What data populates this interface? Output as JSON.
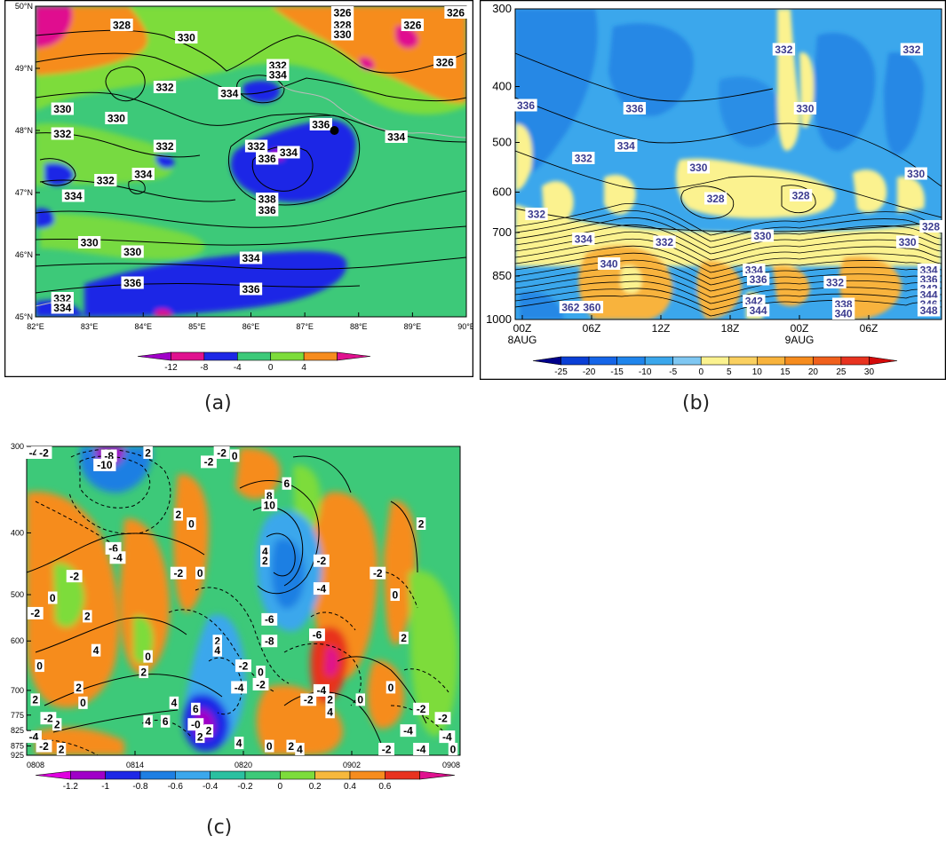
{
  "panels": [
    {
      "caption": "(a)"
    },
    {
      "caption": "(b)"
    },
    {
      "caption": "(c)"
    }
  ],
  "colors": {
    "magenta": "#e0118f",
    "orange": "#f68c1e",
    "lightgreen": "#7ddc3b",
    "green": "#3dc979",
    "blue": "#1e28e6",
    "lightblue": "#3ba7ec",
    "yellow": "#fbf28f",
    "contour": "#000000"
  },
  "chart_data": [
    {
      "type": "heatmap",
      "panel": "a",
      "x_ticks": [
        "82°E",
        "83°E",
        "84°E",
        "85°E",
        "86°E",
        "87°E",
        "88°E",
        "89°E",
        "90°E"
      ],
      "y_ticks": [
        "50°N",
        "49°N",
        "48°N",
        "47°N",
        "46°N",
        "45°N"
      ],
      "xlim": [
        82,
        90
      ],
      "ylim": [
        45,
        50
      ],
      "colorbar": {
        "ticks": [
          "-12",
          "-8",
          "-4",
          "0",
          "4"
        ],
        "colors": [
          "#a000c8",
          "#e0118f",
          "#1e28e6",
          "#3dc979",
          "#7ddc3b",
          "#f68c1e",
          "#e0118f"
        ]
      },
      "contour_labels": [
        {
          "text": "328",
          "lon": 83.6,
          "lat": 49.7
        },
        {
          "text": "330",
          "lon": 84.8,
          "lat": 49.5
        },
        {
          "text": "326",
          "lon": 87.7,
          "lat": 49.9
        },
        {
          "text": "328",
          "lon": 87.7,
          "lat": 49.7
        },
        {
          "text": "330",
          "lon": 87.7,
          "lat": 49.55
        },
        {
          "text": "326",
          "lon": 89.0,
          "lat": 49.7
        },
        {
          "text": "326",
          "lon": 89.6,
          "lat": 49.1
        },
        {
          "text": "326",
          "lon": 90.0,
          "lat": 50.0
        },
        {
          "text": "332",
          "lon": 86.5,
          "lat": 49.05
        },
        {
          "text": "334",
          "lon": 86.5,
          "lat": 48.9
        },
        {
          "text": "332",
          "lon": 84.4,
          "lat": 48.7
        },
        {
          "text": "334",
          "lon": 85.6,
          "lat": 48.6
        },
        {
          "text": "330",
          "lon": 82.5,
          "lat": 48.35
        },
        {
          "text": "330",
          "lon": 83.5,
          "lat": 48.2
        },
        {
          "text": "332",
          "lon": 82.5,
          "lat": 47.95
        },
        {
          "text": "336",
          "lon": 87.3,
          "lat": 48.1
        },
        {
          "text": "334",
          "lon": 88.7,
          "lat": 47.9
        },
        {
          "text": "332",
          "lon": 84.4,
          "lat": 47.75
        },
        {
          "text": "332",
          "lon": 86.1,
          "lat": 47.75
        },
        {
          "text": "334",
          "lon": 86.7,
          "lat": 47.65
        },
        {
          "text": "336",
          "lon": 86.3,
          "lat": 47.55
        },
        {
          "text": "332",
          "lon": 83.3,
          "lat": 47.2
        },
        {
          "text": "334",
          "lon": 84.0,
          "lat": 47.3
        },
        {
          "text": "334",
          "lon": 82.7,
          "lat": 46.95
        },
        {
          "text": "338",
          "lon": 86.3,
          "lat": 46.9
        },
        {
          "text": "336",
          "lon": 86.3,
          "lat": 46.72
        },
        {
          "text": "330",
          "lon": 83.0,
          "lat": 46.2
        },
        {
          "text": "330",
          "lon": 83.8,
          "lat": 46.05
        },
        {
          "text": "334",
          "lon": 86.0,
          "lat": 45.95
        },
        {
          "text": "336",
          "lon": 83.8,
          "lat": 45.55
        },
        {
          "text": "336",
          "lon": 86.0,
          "lat": 45.45
        },
        {
          "text": "332",
          "lon": 82.5,
          "lat": 45.3
        },
        {
          "text": "334",
          "lon": 82.5,
          "lat": 45.15
        }
      ],
      "marker": {
        "lon": 87.55,
        "lat": 48.0
      }
    },
    {
      "type": "heatmap",
      "panel": "b",
      "x_ticks": [
        "00Z\n8AUG",
        "06Z",
        "12Z",
        "18Z",
        "00Z\n9AUG",
        "06Z"
      ],
      "y_ticks": [
        "300",
        "400",
        "500",
        "600",
        "700",
        "850",
        "1000"
      ],
      "colorbar": {
        "ticks": [
          "-25",
          "-20",
          "-15",
          "-10",
          "-5",
          "0",
          "5",
          "10",
          "15",
          "20",
          "25",
          "30"
        ]
      },
      "contour_labels": [
        {
          "text": "332",
          "t": 0.63,
          "p": 0.13
        },
        {
          "text": "332",
          "t": 0.93,
          "p": 0.13
        },
        {
          "text": "336",
          "t": 0.01,
          "p": 0.31
        },
        {
          "text": "336",
          "t": 0.28,
          "p": 0.32
        },
        {
          "text": "330",
          "t": 0.68,
          "p": 0.32
        },
        {
          "text": "334",
          "t": 0.26,
          "p": 0.44
        },
        {
          "text": "332",
          "t": 0.16,
          "p": 0.48
        },
        {
          "text": "330",
          "t": 0.43,
          "p": 0.51
        },
        {
          "text": "330",
          "t": 0.94,
          "p": 0.53
        },
        {
          "text": "328",
          "t": 0.47,
          "p": 0.61
        },
        {
          "text": "328",
          "t": 0.67,
          "p": 0.6
        },
        {
          "text": "332",
          "t": 0.05,
          "p": 0.66
        },
        {
          "text": "328",
          "t": 0.98,
          "p": 0.7
        },
        {
          "text": "334",
          "t": 0.16,
          "p": 0.74
        },
        {
          "text": "332",
          "t": 0.35,
          "p": 0.75
        },
        {
          "text": "330",
          "t": 0.58,
          "p": 0.73
        },
        {
          "text": "330",
          "t": 0.92,
          "p": 0.75
        },
        {
          "text": "340",
          "t": 0.22,
          "p": 0.82
        },
        {
          "text": "334",
          "t": 0.56,
          "p": 0.84
        },
        {
          "text": "336",
          "t": 0.57,
          "p": 0.87
        },
        {
          "text": "332",
          "t": 0.75,
          "p": 0.88
        },
        {
          "text": "334",
          "t": 0.97,
          "p": 0.84
        },
        {
          "text": "336",
          "t": 0.97,
          "p": 0.87
        },
        {
          "text": "342",
          "t": 0.97,
          "p": 0.9
        },
        {
          "text": "344",
          "t": 0.97,
          "p": 0.92
        },
        {
          "text": "346",
          "t": 0.97,
          "p": 0.95
        },
        {
          "text": "348",
          "t": 0.97,
          "p": 0.97
        },
        {
          "text": "342",
          "t": 0.56,
          "p": 0.94
        },
        {
          "text": "344",
          "t": 0.57,
          "p": 0.97
        },
        {
          "text": "338",
          "t": 0.77,
          "p": 0.95
        },
        {
          "text": "340",
          "t": 0.77,
          "p": 0.98
        },
        {
          "text": "362",
          "t": 0.13,
          "p": 0.96
        },
        {
          "text": "360",
          "t": 0.18,
          "p": 0.96
        }
      ]
    },
    {
      "type": "heatmap",
      "panel": "c",
      "x_ticks": [
        "0808",
        "0814",
        "0820",
        "0902",
        "0908"
      ],
      "y_ticks": [
        "300",
        "400",
        "500",
        "600",
        "700",
        "775",
        "825",
        "875",
        "925"
      ],
      "colorbar": {
        "ticks": [
          "-1.2",
          "-1",
          "-0.8",
          "-0.6",
          "-0.4",
          "-0.2",
          "0",
          "0.2",
          "0.4",
          "0.6"
        ]
      },
      "contour_labels": [
        {
          "text": "-4",
          "t": 0.01,
          "p": 0.02
        },
        {
          "text": "-2",
          "t": 0.04,
          "p": 0.01
        },
        {
          "text": "-8",
          "t": 0.19,
          "p": 0.03
        },
        {
          "text": "-10",
          "t": 0.18,
          "p": 0.06
        },
        {
          "text": "2",
          "t": 0.28,
          "p": 0.02
        },
        {
          "text": "-2",
          "t": 0.45,
          "p": 0.01
        },
        {
          "text": "0",
          "t": 0.48,
          "p": 0.03
        },
        {
          "text": "-2",
          "t": 0.42,
          "p": 0.05
        },
        {
          "text": "6",
          "t": 0.6,
          "p": 0.12
        },
        {
          "text": "8",
          "t": 0.56,
          "p": 0.16
        },
        {
          "text": "10",
          "t": 0.56,
          "p": 0.19
        },
        {
          "text": "2",
          "t": 0.35,
          "p": 0.22
        },
        {
          "text": "0",
          "t": 0.38,
          "p": 0.25
        },
        {
          "text": "2",
          "t": 0.91,
          "p": 0.25
        },
        {
          "text": "-6",
          "t": 0.2,
          "p": 0.33
        },
        {
          "text": "-4",
          "t": 0.21,
          "p": 0.36
        },
        {
          "text": "4",
          "t": 0.55,
          "p": 0.34
        },
        {
          "text": "2",
          "t": 0.55,
          "p": 0.37
        },
        {
          "text": "-2",
          "t": 0.68,
          "p": 0.37
        },
        {
          "text": "-2",
          "t": 0.81,
          "p": 0.41
        },
        {
          "text": "-2",
          "t": 0.11,
          "p": 0.42
        },
        {
          "text": "-2",
          "t": 0.35,
          "p": 0.41
        },
        {
          "text": "0",
          "t": 0.4,
          "p": 0.41
        },
        {
          "text": "-4",
          "t": 0.68,
          "p": 0.46
        },
        {
          "text": "0",
          "t": 0.06,
          "p": 0.49
        },
        {
          "text": "0",
          "t": 0.85,
          "p": 0.48
        },
        {
          "text": "-2",
          "t": 0.02,
          "p": 0.54
        },
        {
          "text": "2",
          "t": 0.14,
          "p": 0.55
        },
        {
          "text": "-6",
          "t": 0.56,
          "p": 0.56
        },
        {
          "text": "-6",
          "t": 0.67,
          "p": 0.61
        },
        {
          "text": "2",
          "t": 0.87,
          "p": 0.62
        },
        {
          "text": "-8",
          "t": 0.56,
          "p": 0.63
        },
        {
          "text": "2",
          "t": 0.44,
          "p": 0.63
        },
        {
          "text": "4",
          "t": 0.16,
          "p": 0.66
        },
        {
          "text": "0",
          "t": 0.28,
          "p": 0.68
        },
        {
          "text": "4",
          "t": 0.44,
          "p": 0.66
        },
        {
          "text": "-2",
          "t": 0.5,
          "p": 0.71
        },
        {
          "text": "0",
          "t": 0.03,
          "p": 0.71
        },
        {
          "text": "2",
          "t": 0.27,
          "p": 0.73
        },
        {
          "text": "0",
          "t": 0.54,
          "p": 0.73
        },
        {
          "text": "-2",
          "t": 0.54,
          "p": 0.77
        },
        {
          "text": "-4",
          "t": 0.49,
          "p": 0.78
        },
        {
          "text": "-4",
          "t": 0.68,
          "p": 0.79
        },
        {
          "text": "-2",
          "t": 0.65,
          "p": 0.82
        },
        {
          "text": "2",
          "t": 0.7,
          "p": 0.82
        },
        {
          "text": "4",
          "t": 0.7,
          "p": 0.86
        },
        {
          "text": "0",
          "t": 0.77,
          "p": 0.82
        },
        {
          "text": "0",
          "t": 0.84,
          "p": 0.78
        },
        {
          "text": "2",
          "t": 0.12,
          "p": 0.78
        },
        {
          "text": "0",
          "t": 0.13,
          "p": 0.83
        },
        {
          "text": "2",
          "t": 0.07,
          "p": 0.9
        },
        {
          "text": "-2",
          "t": 0.91,
          "p": 0.85
        },
        {
          "text": "-2",
          "t": 0.96,
          "p": 0.88
        },
        {
          "text": "2",
          "t": 0.02,
          "p": 0.82
        },
        {
          "text": "-2",
          "t": 0.05,
          "p": 0.88
        },
        {
          "text": "4",
          "t": 0.28,
          "p": 0.89
        },
        {
          "text": "6",
          "t": 0.32,
          "p": 0.89
        },
        {
          "text": "4",
          "t": 0.34,
          "p": 0.83
        },
        {
          "text": "6",
          "t": 0.39,
          "p": 0.85
        },
        {
          "text": "-0",
          "t": 0.39,
          "p": 0.9
        },
        {
          "text": "2",
          "t": 0.4,
          "p": 0.94
        },
        {
          "text": "2",
          "t": 0.42,
          "p": 0.92
        },
        {
          "text": "4",
          "t": 0.49,
          "p": 0.96
        },
        {
          "text": "0",
          "t": 0.56,
          "p": 0.97
        },
        {
          "text": "2",
          "t": 0.61,
          "p": 0.97
        },
        {
          "text": "4",
          "t": 0.63,
          "p": 0.99
        },
        {
          "text": "-4",
          "t": 0.88,
          "p": 0.92
        },
        {
          "text": "-4",
          "t": 0.97,
          "p": 0.94
        },
        {
          "text": "-4",
          "t": 0.91,
          "p": 0.98
        },
        {
          "text": "-2",
          "t": 0.83,
          "p": 1.0
        },
        {
          "text": "-4",
          "t": 0.01,
          "p": 0.94
        },
        {
          "text": "-2",
          "t": 0.04,
          "p": 0.97
        },
        {
          "text": "2",
          "t": 0.08,
          "p": 0.99
        },
        {
          "text": "0",
          "t": 0.99,
          "p": 0.99
        }
      ]
    }
  ]
}
